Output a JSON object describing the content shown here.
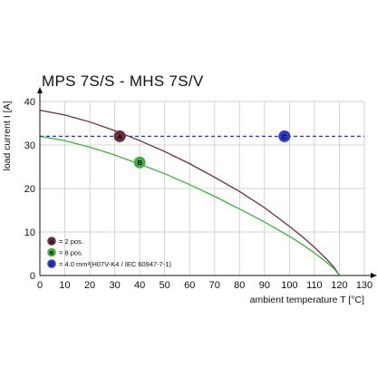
{
  "chart_data": {
    "type": "line",
    "title": "MPS 7S/S - MHS 7S/V",
    "xlabel": "ambient temperature T [°C]",
    "ylabel": "load current I [A]",
    "xlim": [
      0,
      130
    ],
    "ylim": [
      0,
      40
    ],
    "xticks": [
      0,
      10,
      20,
      30,
      40,
      50,
      60,
      70,
      80,
      90,
      100,
      110,
      120,
      130
    ],
    "yticks": [
      0,
      10,
      20,
      30,
      40
    ],
    "grid": true,
    "legend_position": "bottom-left",
    "series": [
      {
        "marker": "A",
        "name": "= 2 pos.",
        "color": "#6b2c3e",
        "x": [
          0,
          10,
          20,
          30,
          40,
          50,
          60,
          70,
          80,
          90,
          100,
          105,
          110,
          115,
          118,
          120
        ],
        "y": [
          38,
          36.9,
          35.3,
          33.3,
          31.0,
          28.5,
          25.7,
          22.6,
          19.3,
          15.6,
          11.3,
          9.0,
          6.5,
          3.7,
          1.8,
          0
        ]
      },
      {
        "marker": "B",
        "name": "= 8 pos.",
        "color": "#3bb33b",
        "x": [
          0,
          10,
          20,
          30,
          40,
          50,
          60,
          70,
          80,
          90,
          100,
          105,
          110,
          115,
          118,
          120
        ],
        "y": [
          32,
          31.0,
          29.5,
          27.7,
          25.6,
          23.4,
          20.9,
          18.2,
          15.3,
          12.3,
          9.0,
          7.2,
          5.2,
          3.0,
          1.5,
          0
        ]
      },
      {
        "marker": "C",
        "name": "= 4.0 mm²(H07V-K4 / IEC 60947-7-1)",
        "color": "#2a3dcc",
        "style": "dashed",
        "x": [
          0,
          130
        ],
        "y": [
          32,
          32
        ]
      }
    ],
    "point_markers": [
      {
        "label": "A",
        "x": 32,
        "y": 32,
        "color": "#6b2c3e"
      },
      {
        "label": "B",
        "x": 40,
        "y": 26,
        "color": "#3bb33b"
      },
      {
        "label": "C",
        "x": 98,
        "y": 32,
        "color": "#2a3dcc"
      }
    ]
  }
}
